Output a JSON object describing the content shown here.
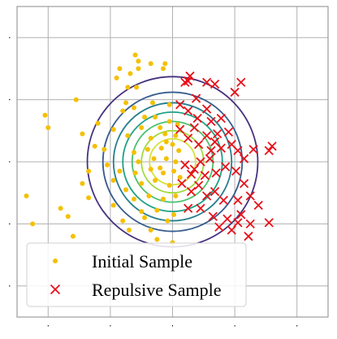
{
  "chart_data": {
    "type": "scatter",
    "title": "",
    "xlabel": "",
    "ylabel": "",
    "xlim": [
      -2.5,
      2.5
    ],
    "ylim": [
      -2.5,
      2.5
    ],
    "xticks": [
      -2,
      -1,
      0,
      1,
      2
    ],
    "yticks": [
      -2,
      -1,
      0,
      1,
      2
    ],
    "grid": true,
    "legend": {
      "placement": "lower-left"
    },
    "contours": {
      "center": [
        0,
        0
      ],
      "radii": [
        1.37,
        1.12,
        0.95,
        0.8,
        0.65,
        0.5,
        0.37
      ],
      "colors": [
        "#46327e",
        "#365c8d",
        "#277f8e",
        "#1fa187",
        "#4ac16d",
        "#a0da39",
        "#d6e23a"
      ]
    },
    "series": [
      {
        "name": "Initial Sample",
        "marker": "dot",
        "color": "#f5c000",
        "points": [
          [
            -0.6,
            1.72
          ],
          [
            -0.55,
            1.62
          ],
          [
            -0.35,
            1.58
          ],
          [
            -0.12,
            1.58
          ],
          [
            -0.68,
            1.42
          ],
          [
            -0.15,
            1.5
          ],
          [
            -0.72,
            1.2
          ],
          [
            -0.58,
            1.2
          ],
          [
            -0.75,
            0.95
          ],
          [
            -0.62,
            0.87
          ],
          [
            -0.32,
            0.95
          ],
          [
            -0.8,
            0.82
          ],
          [
            -0.45,
            0.72
          ],
          [
            -0.28,
            0.72
          ],
          [
            -0.5,
            0.55
          ],
          [
            -0.2,
            0.55
          ],
          [
            -0.05,
            0.65
          ],
          [
            -0.95,
            0.52
          ],
          [
            -0.72,
            0.42
          ],
          [
            -0.35,
            0.38
          ],
          [
            -0.12,
            0.45
          ],
          [
            -1.1,
            0.2
          ],
          [
            -0.62,
            0.15
          ],
          [
            -0.4,
            0.2
          ],
          [
            -0.18,
            0.22
          ],
          [
            0.0,
            0.28
          ],
          [
            -0.55,
            0.0
          ],
          [
            -0.3,
            0.05
          ],
          [
            -0.1,
            0.05
          ],
          [
            0.05,
            0.0
          ],
          [
            -1.05,
            -0.05
          ],
          [
            -0.85,
            -0.15
          ],
          [
            -0.6,
            -0.18
          ],
          [
            -0.35,
            -0.12
          ],
          [
            -0.15,
            -0.18
          ],
          [
            0.02,
            -0.15
          ],
          [
            -0.5,
            -0.35
          ],
          [
            -0.28,
            -0.3
          ],
          [
            -0.05,
            -0.38
          ],
          [
            -0.75,
            -0.45
          ],
          [
            -0.95,
            -0.3
          ],
          [
            -0.62,
            -0.6
          ],
          [
            -0.38,
            -0.55
          ],
          [
            -0.15,
            -0.6
          ],
          [
            0.05,
            -0.55
          ],
          [
            -0.5,
            -0.8
          ],
          [
            -0.25,
            -0.78
          ],
          [
            0.02,
            -0.85
          ],
          [
            -0.8,
            -0.95
          ],
          [
            -0.35,
            -1.1
          ],
          [
            -0.08,
            -0.95
          ],
          [
            -2.35,
            -0.55
          ],
          [
            -1.8,
            -0.75
          ],
          [
            -1.68,
            -0.88
          ],
          [
            -1.35,
            -0.58
          ],
          [
            -1.45,
            -0.35
          ],
          [
            -2.05,
            0.75
          ],
          [
            -2.0,
            0.55
          ],
          [
            -1.25,
            0.25
          ],
          [
            -1.45,
            0.45
          ],
          [
            -1.55,
            1.0
          ],
          [
            -1.2,
            0.62
          ],
          [
            -0.85,
            1.5
          ],
          [
            -0.9,
            1.35
          ],
          [
            -0.05,
            0.92
          ],
          [
            0.05,
            0.42
          ],
          [
            0.1,
            0.18
          ],
          [
            0.12,
            -0.25
          ],
          [
            0.0,
            -1.3
          ],
          [
            -0.25,
            -1.25
          ],
          [
            -0.45,
            -0.9
          ],
          [
            -0.7,
            -1.1
          ],
          [
            -0.95,
            -0.7
          ],
          [
            -0.2,
            -0.1
          ],
          [
            -0.1,
            0.32
          ],
          [
            0.08,
            0.6
          ],
          [
            -1.6,
            -1.2
          ],
          [
            -2.25,
            -1.0
          ],
          [
            -1.35,
            -0.15
          ],
          [
            -0.55,
            1.5
          ]
        ]
      },
      {
        "name": "Repulsive Sample",
        "marker": "x",
        "color": "#e8101a",
        "points": [
          [
            0.2,
            1.28
          ],
          [
            0.28,
            1.38
          ],
          [
            0.25,
            1.3
          ],
          [
            0.38,
            1.02
          ],
          [
            0.55,
            1.28
          ],
          [
            0.68,
            1.25
          ],
          [
            0.12,
            0.92
          ],
          [
            0.25,
            0.82
          ],
          [
            0.4,
            0.7
          ],
          [
            0.55,
            0.85
          ],
          [
            0.62,
            0.65
          ],
          [
            0.78,
            0.7
          ],
          [
            1.0,
            1.12
          ],
          [
            1.1,
            1.28
          ],
          [
            0.12,
            0.52
          ],
          [
            0.25,
            0.38
          ],
          [
            0.42,
            0.28
          ],
          [
            0.55,
            0.42
          ],
          [
            0.62,
            0.18
          ],
          [
            0.68,
            0.32
          ],
          [
            0.78,
            0.22
          ],
          [
            0.95,
            0.28
          ],
          [
            1.05,
            0.18
          ],
          [
            1.15,
            0.05
          ],
          [
            1.3,
            0.2
          ],
          [
            1.55,
            0.18
          ],
          [
            1.6,
            0.25
          ],
          [
            0.72,
            0.45
          ],
          [
            0.2,
            -0.05
          ],
          [
            0.35,
            -0.12
          ],
          [
            0.45,
            0.0
          ],
          [
            0.52,
            -0.22
          ],
          [
            0.7,
            -0.18
          ],
          [
            0.85,
            -0.08
          ],
          [
            1.02,
            -0.15
          ],
          [
            1.15,
            -0.35
          ],
          [
            0.15,
            -0.35
          ],
          [
            0.3,
            -0.48
          ],
          [
            0.42,
            -0.38
          ],
          [
            0.55,
            -0.55
          ],
          [
            0.68,
            -0.48
          ],
          [
            0.82,
            -0.62
          ],
          [
            1.05,
            -0.62
          ],
          [
            1.25,
            -0.55
          ],
          [
            1.38,
            -0.7
          ],
          [
            0.25,
            -0.75
          ],
          [
            0.45,
            -0.75
          ],
          [
            0.65,
            -0.88
          ],
          [
            0.88,
            -0.92
          ],
          [
            1.05,
            -0.98
          ],
          [
            1.25,
            -1.0
          ],
          [
            1.55,
            -0.98
          ],
          [
            0.75,
            -1.05
          ],
          [
            0.95,
            -1.1
          ],
          [
            1.22,
            -1.2
          ],
          [
            1.1,
            -0.85
          ],
          [
            0.3,
            -0.2
          ],
          [
            0.6,
            0.05
          ],
          [
            0.9,
            0.48
          ],
          [
            0.35,
            0.55
          ]
        ]
      }
    ]
  }
}
